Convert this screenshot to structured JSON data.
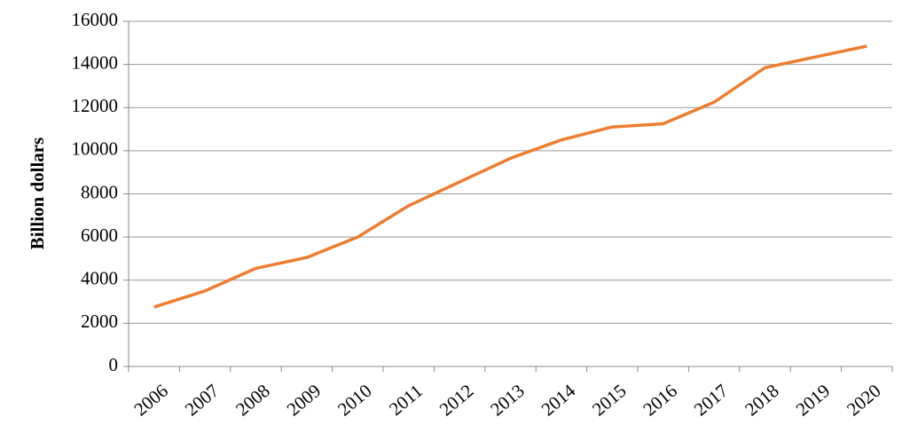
{
  "chart_data": {
    "type": "line",
    "y_label": "Billion dollars",
    "categories": [
      "2006",
      "2007",
      "2008",
      "2009",
      "2010",
      "2011",
      "2012",
      "2013",
      "2014",
      "2015",
      "2016",
      "2017",
      "2018",
      "2019",
      "2020"
    ],
    "series": [
      {
        "color": "#ed7d31",
        "values": [
          2750,
          3500,
          4550,
          5050,
          6000,
          7450,
          8550,
          9650,
          10500,
          11100,
          11250,
          12250,
          13850,
          14350,
          14850
        ]
      }
    ],
    "ylim": [
      0,
      16000
    ],
    "yticks": [
      0,
      2000,
      4000,
      6000,
      8000,
      10000,
      12000,
      14000,
      16000
    ],
    "grid": true
  }
}
